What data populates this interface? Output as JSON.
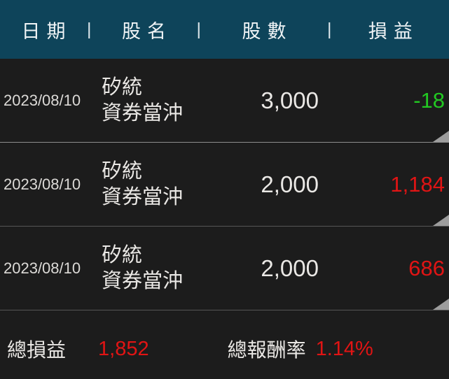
{
  "colors": {
    "header_bg": "#0e445a",
    "header_text": "#f0f4f6",
    "row_bg": "#1c1c1c",
    "text_primary": "#eae8e5",
    "text_date": "#dcdad7",
    "gain_red": "#e01414",
    "loss_green": "#22c822",
    "separator_bright": "#8f8f8f",
    "separator_dim": "#565656",
    "triangle": "#9d9d9d"
  },
  "header": {
    "divider": "|",
    "columns": [
      "日期",
      "股名",
      "股數",
      "損益"
    ]
  },
  "rows": [
    {
      "date": "2023/08/10",
      "name": [
        "矽統",
        "資券當沖"
      ],
      "shares": "3,000",
      "pl": "-18",
      "pl_type": "loss"
    },
    {
      "date": "2023/08/10",
      "name": [
        "矽統",
        "資券當沖"
      ],
      "shares": "2,000",
      "pl": "1,184",
      "pl_type": "gain"
    },
    {
      "date": "2023/08/10",
      "name": [
        "矽統",
        "資券當沖"
      ],
      "shares": "2,000",
      "pl": "686",
      "pl_type": "gain"
    }
  ],
  "footer": {
    "total_pl_label": "總損益",
    "total_pl_value": "1,852",
    "total_pl_type": "gain",
    "total_return_label": "總報酬率",
    "total_return_value": "1.14%",
    "total_return_type": "gain"
  }
}
